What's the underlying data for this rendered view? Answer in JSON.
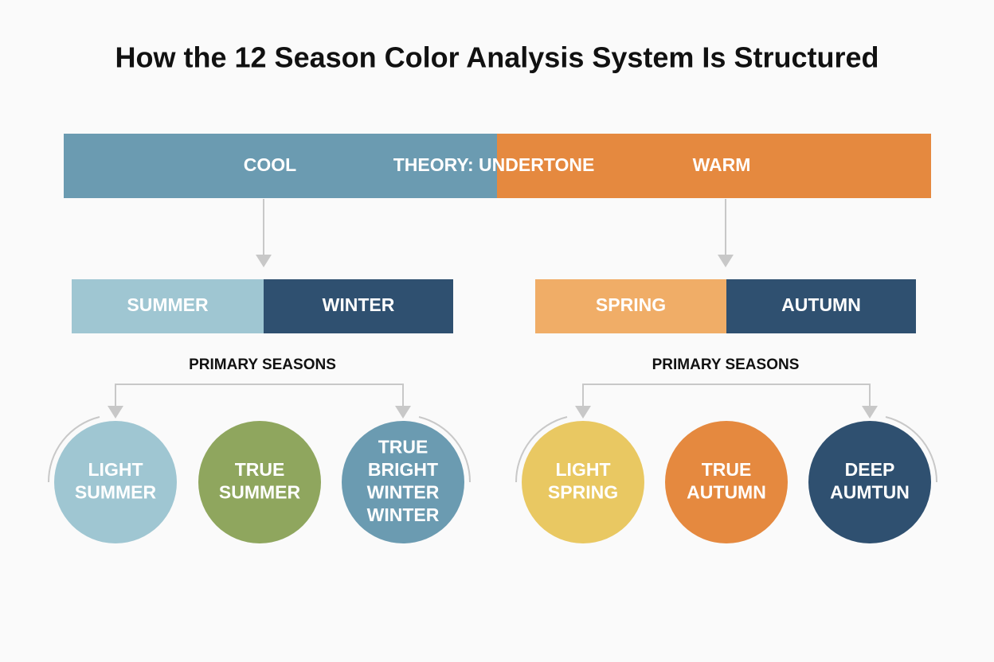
{
  "title": "How the 12 Season Color Analysis System Is Structured",
  "undertone_bar": {
    "cool": "COOL",
    "theory": "THEORY: UNDERTONE",
    "warm": "WARM"
  },
  "groups": [
    {
      "boxes": [
        "SUMMER",
        "WINTER"
      ],
      "label": "PRIMARY SEASONS",
      "circles": [
        [
          "LIGHT",
          "SUMMER"
        ],
        [
          "TRUE",
          "SUMMER"
        ],
        [
          "TRUE",
          "BRIGHT",
          "WINTER",
          "WINTER"
        ]
      ]
    },
    {
      "boxes": [
        "SPRING",
        "AUTUMN"
      ],
      "label": "PRIMARY SEASONS",
      "circles": [
        [
          "LIGHT",
          "SPRING"
        ],
        [
          "TRUE",
          "AUTUMN"
        ],
        [
          "DEEP",
          "AUMTUN"
        ]
      ]
    }
  ]
}
